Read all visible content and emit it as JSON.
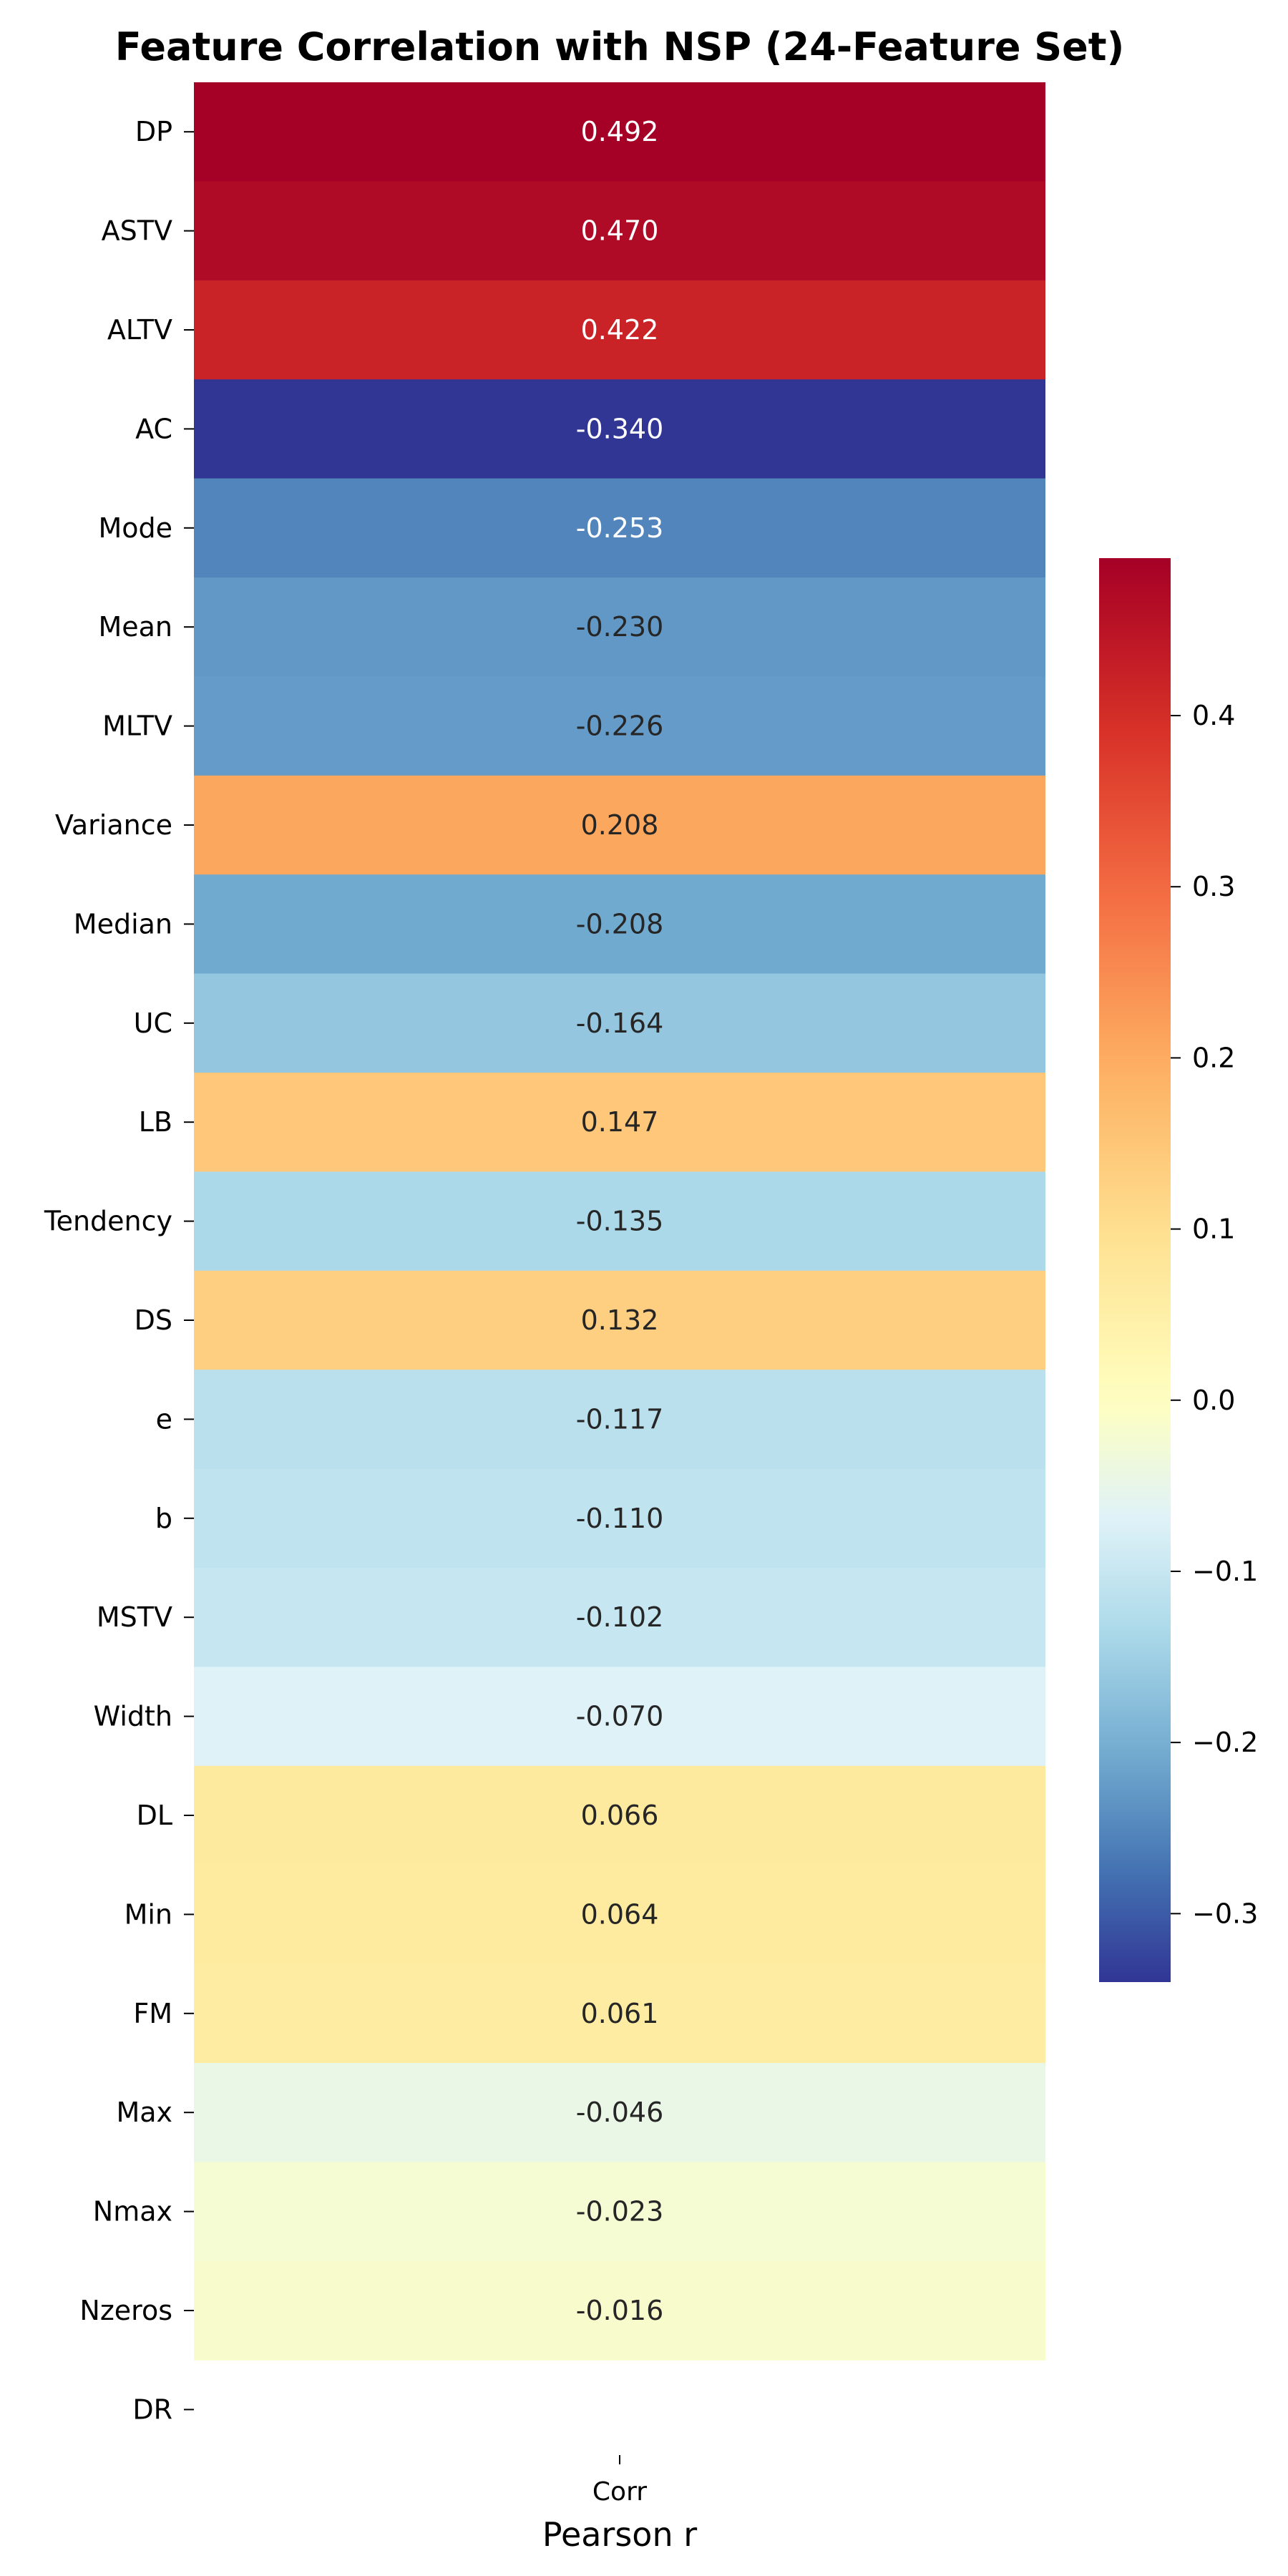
{
  "chart_data": {
    "type": "heatmap",
    "title": "Feature Correlation with NSP (24-Feature Set)",
    "xlabel": "Pearson r",
    "ylabel": "",
    "columns": [
      "Corr"
    ],
    "rows": [
      {
        "feature": "DP",
        "value": 0.492,
        "label": "0.492"
      },
      {
        "feature": "ASTV",
        "value": 0.47,
        "label": "0.470"
      },
      {
        "feature": "ALTV",
        "value": 0.422,
        "label": "0.422"
      },
      {
        "feature": "AC",
        "value": -0.34,
        "label": "-0.340"
      },
      {
        "feature": "Mode",
        "value": -0.253,
        "label": "-0.253"
      },
      {
        "feature": "Mean",
        "value": -0.23,
        "label": "-0.230"
      },
      {
        "feature": "MLTV",
        "value": -0.226,
        "label": "-0.226"
      },
      {
        "feature": "Variance",
        "value": 0.208,
        "label": "0.208"
      },
      {
        "feature": "Median",
        "value": -0.208,
        "label": "-0.208"
      },
      {
        "feature": "UC",
        "value": -0.164,
        "label": "-0.164"
      },
      {
        "feature": "LB",
        "value": 0.147,
        "label": "0.147"
      },
      {
        "feature": "Tendency",
        "value": -0.135,
        "label": "-0.135"
      },
      {
        "feature": "DS",
        "value": 0.132,
        "label": "0.132"
      },
      {
        "feature": "e",
        "value": -0.117,
        "label": "-0.117"
      },
      {
        "feature": "b",
        "value": -0.11,
        "label": "-0.110"
      },
      {
        "feature": "MSTV",
        "value": -0.102,
        "label": "-0.102"
      },
      {
        "feature": "Width",
        "value": -0.07,
        "label": "-0.070"
      },
      {
        "feature": "DL",
        "value": 0.066,
        "label": "0.066"
      },
      {
        "feature": "Min",
        "value": 0.064,
        "label": "0.064"
      },
      {
        "feature": "FM",
        "value": 0.061,
        "label": "0.061"
      },
      {
        "feature": "Max",
        "value": -0.046,
        "label": "-0.046"
      },
      {
        "feature": "Nmax",
        "value": -0.023,
        "label": "-0.023"
      },
      {
        "feature": "Nzeros",
        "value": -0.016,
        "label": "-0.016"
      },
      {
        "feature": "DR",
        "value": null,
        "label": ""
      }
    ],
    "colormap": "RdYlBu_r",
    "color_range": [
      -0.34,
      0.492
    ],
    "colorbar_ticks": [
      {
        "value": 0.4,
        "label": "0.4"
      },
      {
        "value": 0.3,
        "label": "0.3"
      },
      {
        "value": 0.2,
        "label": "0.2"
      },
      {
        "value": 0.1,
        "label": "0.1"
      },
      {
        "value": 0.0,
        "label": "0.0"
      },
      {
        "value": -0.1,
        "label": "−0.1"
      },
      {
        "value": -0.2,
        "label": "−0.2"
      },
      {
        "value": -0.3,
        "label": "−0.3"
      }
    ],
    "grid": false
  }
}
